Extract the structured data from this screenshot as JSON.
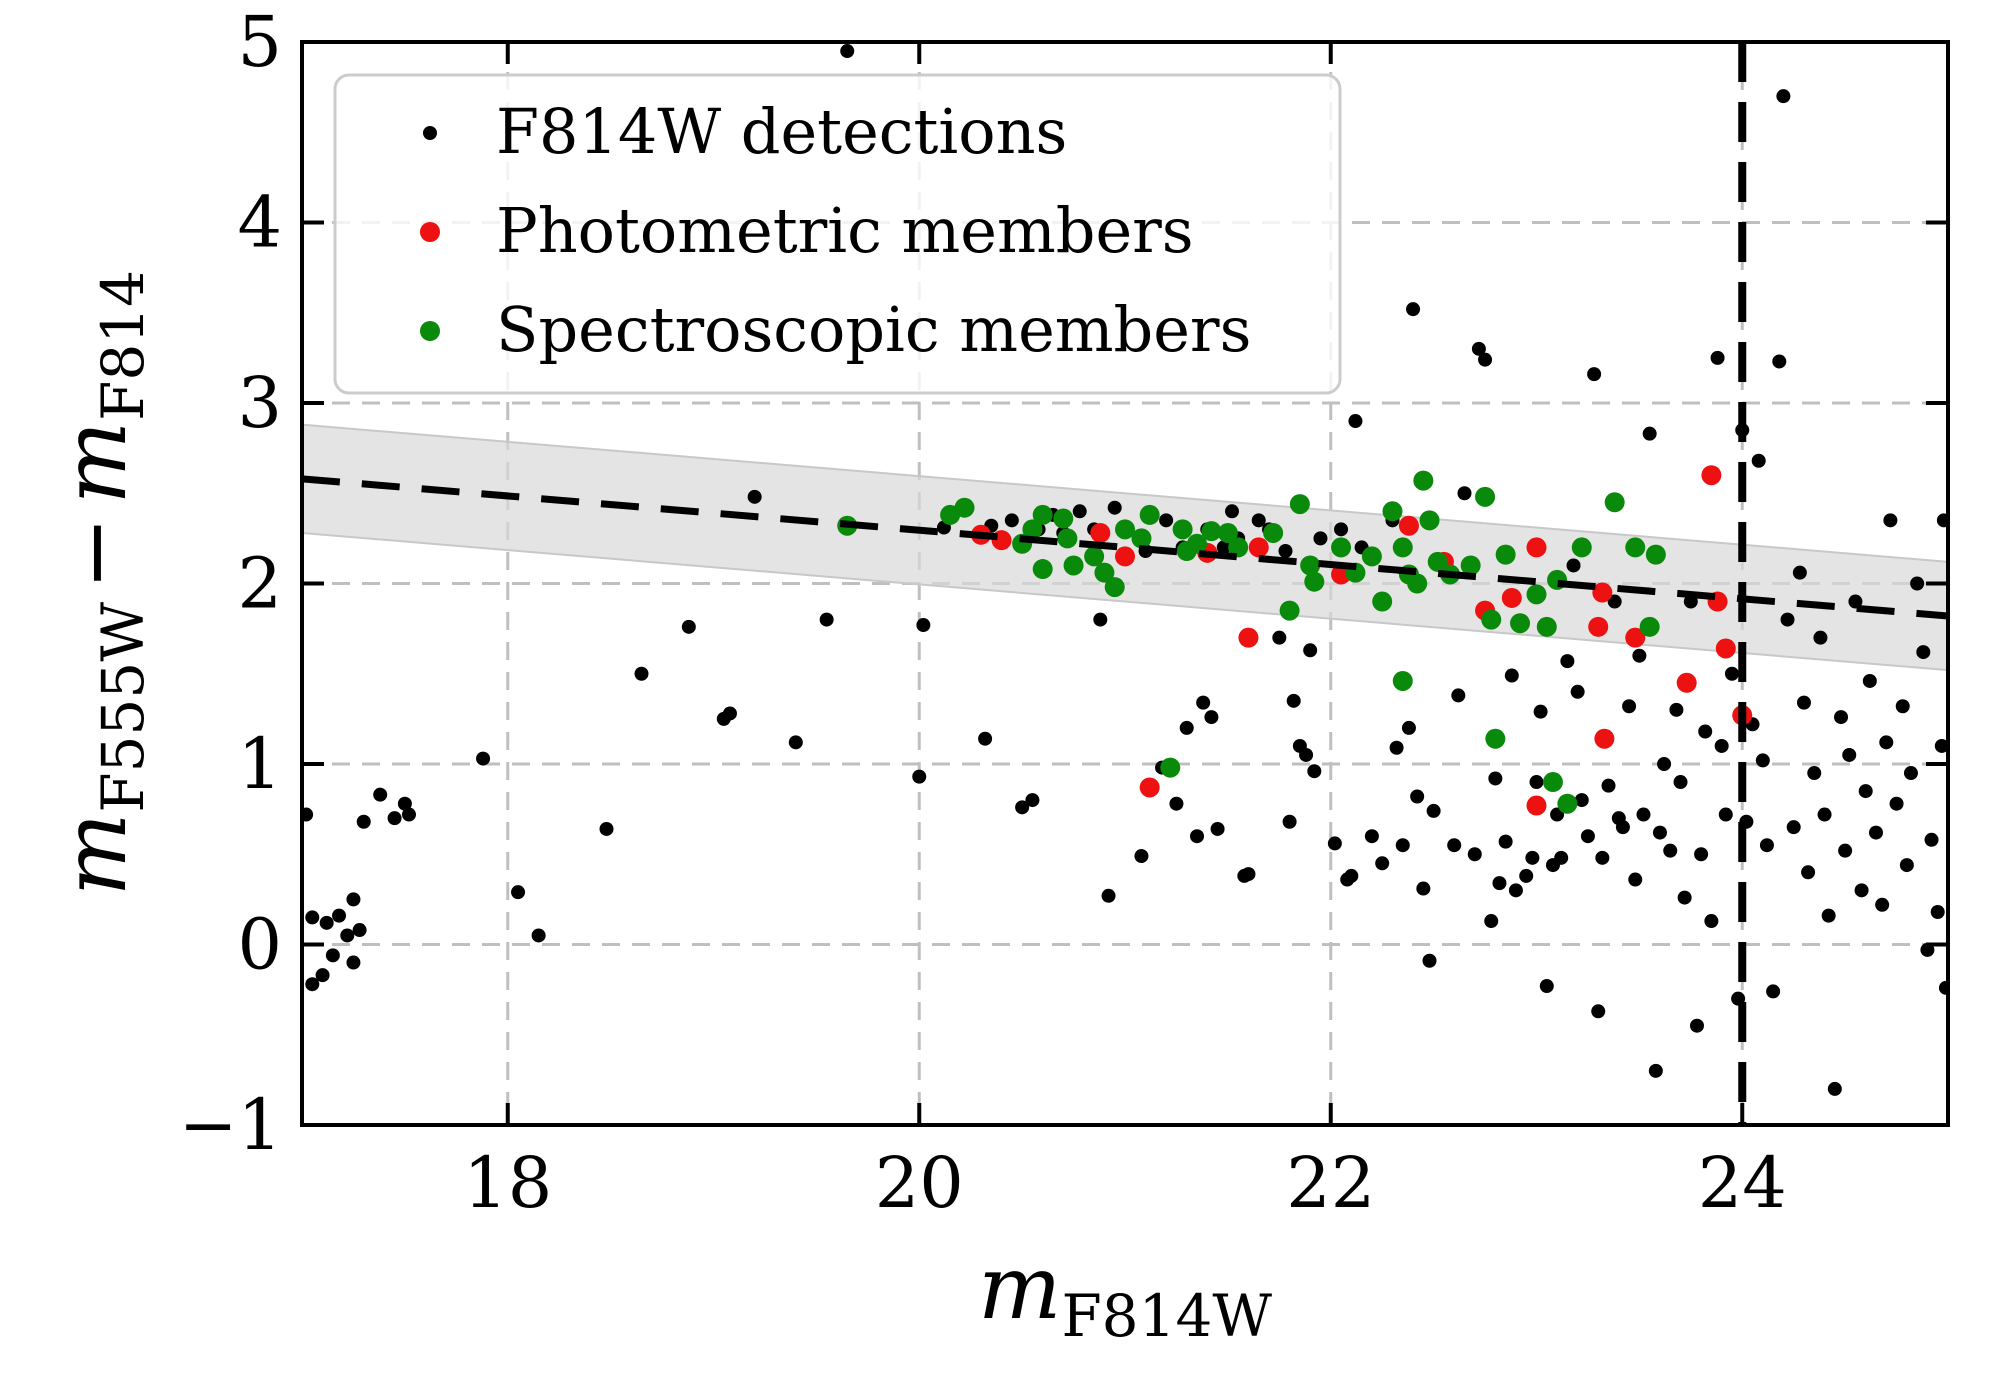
{
  "chart_data": {
    "type": "scatter",
    "title": "",
    "xlabel": {
      "base": "m",
      "sub": "F814W"
    },
    "ylabel": {
      "base": "m",
      "sub1": "F555W",
      "minus": "−",
      "sub2": "F814"
    },
    "xlim": [
      17,
      25
    ],
    "ylim": [
      -1,
      5
    ],
    "xticks": [
      18,
      20,
      22,
      24
    ],
    "xtick_labels": [
      "18",
      "20",
      "22",
      "24"
    ],
    "yticks": [
      -1,
      0,
      1,
      2,
      3,
      4,
      5
    ],
    "ytick_labels": [
      "−1",
      "0",
      "1",
      "2",
      "3",
      "4",
      "5"
    ],
    "grid": true,
    "legend_position": "top-left",
    "magnitude_limit": 24,
    "sequence_fit": {
      "x": [
        17,
        25
      ],
      "y": [
        2.58,
        1.82
      ],
      "band_halfwidth": 0.3,
      "style": "dashed"
    },
    "series": [
      {
        "name": "F814W detections",
        "color": "#000000",
        "points": [
          [
            17.02,
            0.72
          ],
          [
            17.05,
            -0.22
          ],
          [
            17.05,
            0.15
          ],
          [
            17.1,
            -0.17
          ],
          [
            17.12,
            0.12
          ],
          [
            17.15,
            -0.06
          ],
          [
            17.18,
            0.16
          ],
          [
            17.22,
            0.05
          ],
          [
            17.25,
            0.25
          ],
          [
            17.25,
            -0.1
          ],
          [
            17.28,
            0.08
          ],
          [
            17.3,
            0.68
          ],
          [
            17.38,
            0.83
          ],
          [
            17.45,
            0.7
          ],
          [
            17.5,
            0.78
          ],
          [
            17.52,
            0.72
          ],
          [
            17.88,
            1.03
          ],
          [
            18.05,
            0.29
          ],
          [
            18.15,
            0.05
          ],
          [
            18.48,
            0.64
          ],
          [
            18.65,
            1.5
          ],
          [
            18.88,
            1.76
          ],
          [
            19.05,
            1.25
          ],
          [
            19.08,
            1.28
          ],
          [
            19.2,
            2.48
          ],
          [
            19.4,
            1.12
          ],
          [
            19.55,
            1.8
          ],
          [
            19.65,
            4.95
          ],
          [
            20.0,
            0.93
          ],
          [
            20.02,
            1.77
          ],
          [
            20.12,
            2.31
          ],
          [
            20.32,
            1.14
          ],
          [
            20.35,
            2.32
          ],
          [
            20.45,
            2.35
          ],
          [
            20.5,
            0.76
          ],
          [
            20.55,
            0.8
          ],
          [
            20.58,
            2.3
          ],
          [
            20.65,
            2.38
          ],
          [
            20.7,
            2.28
          ],
          [
            20.78,
            2.4
          ],
          [
            20.85,
            2.3
          ],
          [
            20.88,
            1.8
          ],
          [
            20.92,
            0.27
          ],
          [
            20.95,
            2.42
          ],
          [
            21.0,
            2.3
          ],
          [
            21.08,
            0.49
          ],
          [
            21.1,
            2.18
          ],
          [
            21.18,
            0.98
          ],
          [
            21.2,
            2.35
          ],
          [
            21.25,
            0.78
          ],
          [
            21.28,
            2.2
          ],
          [
            21.3,
            1.2
          ],
          [
            21.35,
            0.6
          ],
          [
            21.38,
            1.34
          ],
          [
            21.4,
            2.3
          ],
          [
            21.42,
            1.26
          ],
          [
            21.45,
            0.64
          ],
          [
            21.48,
            2.2
          ],
          [
            21.52,
            2.4
          ],
          [
            21.55,
            2.25
          ],
          [
            21.58,
            0.38
          ],
          [
            21.6,
            0.39
          ],
          [
            21.65,
            2.35
          ],
          [
            21.7,
            2.3
          ],
          [
            21.75,
            1.7
          ],
          [
            21.78,
            2.18
          ],
          [
            21.8,
            0.68
          ],
          [
            21.82,
            1.35
          ],
          [
            21.85,
            1.1
          ],
          [
            21.88,
            1.05
          ],
          [
            21.9,
            1.63
          ],
          [
            21.92,
            0.96
          ],
          [
            21.95,
            2.25
          ],
          [
            22.02,
            0.56
          ],
          [
            22.05,
            2.3
          ],
          [
            22.08,
            0.36
          ],
          [
            22.1,
            0.38
          ],
          [
            22.12,
            2.9
          ],
          [
            22.15,
            2.2
          ],
          [
            22.2,
            0.6
          ],
          [
            22.25,
            0.45
          ],
          [
            22.3,
            2.35
          ],
          [
            22.32,
            1.09
          ],
          [
            22.35,
            0.55
          ],
          [
            22.38,
            1.2
          ],
          [
            22.4,
            3.52
          ],
          [
            22.42,
            0.82
          ],
          [
            22.45,
            0.31
          ],
          [
            22.48,
            -0.09
          ],
          [
            22.5,
            0.74
          ],
          [
            22.55,
            2.1
          ],
          [
            22.6,
            0.55
          ],
          [
            22.62,
            1.38
          ],
          [
            22.65,
            2.5
          ],
          [
            22.7,
            0.5
          ],
          [
            22.72,
            3.3
          ],
          [
            22.75,
            3.24
          ],
          [
            22.78,
            0.13
          ],
          [
            22.8,
            0.92
          ],
          [
            22.82,
            0.34
          ],
          [
            22.85,
            0.57
          ],
          [
            22.88,
            1.49
          ],
          [
            22.9,
            0.3
          ],
          [
            22.95,
            0.38
          ],
          [
            22.98,
            0.48
          ],
          [
            23.0,
            0.9
          ],
          [
            23.02,
            1.29
          ],
          [
            23.05,
            -0.23
          ],
          [
            23.08,
            0.44
          ],
          [
            23.1,
            0.72
          ],
          [
            23.12,
            0.48
          ],
          [
            23.15,
            1.57
          ],
          [
            23.18,
            2.1
          ],
          [
            23.2,
            1.4
          ],
          [
            23.22,
            0.8
          ],
          [
            23.25,
            0.6
          ],
          [
            23.28,
            3.16
          ],
          [
            23.3,
            -0.37
          ],
          [
            23.32,
            0.48
          ],
          [
            23.35,
            0.88
          ],
          [
            23.38,
            1.9
          ],
          [
            23.4,
            0.7
          ],
          [
            23.42,
            0.65
          ],
          [
            23.45,
            1.32
          ],
          [
            23.48,
            0.36
          ],
          [
            23.5,
            1.6
          ],
          [
            23.52,
            0.72
          ],
          [
            23.55,
            2.83
          ],
          [
            23.58,
            -0.7
          ],
          [
            23.6,
            0.62
          ],
          [
            23.62,
            1.0
          ],
          [
            23.65,
            0.52
          ],
          [
            23.68,
            1.3
          ],
          [
            23.7,
            0.9
          ],
          [
            23.72,
            0.26
          ],
          [
            23.75,
            1.9
          ],
          [
            23.78,
            -0.45
          ],
          [
            23.8,
            0.5
          ],
          [
            23.82,
            1.18
          ],
          [
            23.85,
            0.13
          ],
          [
            23.88,
            3.25
          ],
          [
            23.9,
            1.1
          ],
          [
            23.92,
            0.72
          ],
          [
            23.95,
            1.5
          ],
          [
            23.98,
            -0.3
          ],
          [
            24.0,
            2.85
          ],
          [
            24.02,
            0.68
          ],
          [
            24.05,
            1.22
          ],
          [
            24.08,
            2.68
          ],
          [
            24.1,
            1.02
          ],
          [
            24.12,
            0.55
          ],
          [
            24.15,
            -0.26
          ],
          [
            24.18,
            3.23
          ],
          [
            24.2,
            4.7
          ],
          [
            24.22,
            1.8
          ],
          [
            24.25,
            0.65
          ],
          [
            24.28,
            2.06
          ],
          [
            24.3,
            1.34
          ],
          [
            24.32,
            0.4
          ],
          [
            24.35,
            0.95
          ],
          [
            24.38,
            1.7
          ],
          [
            24.4,
            0.72
          ],
          [
            24.42,
            0.16
          ],
          [
            24.45,
            -0.8
          ],
          [
            24.48,
            1.26
          ],
          [
            24.5,
            0.52
          ],
          [
            24.52,
            1.05
          ],
          [
            24.55,
            1.9
          ],
          [
            24.58,
            0.3
          ],
          [
            24.6,
            0.85
          ],
          [
            24.62,
            1.46
          ],
          [
            24.65,
            0.62
          ],
          [
            24.68,
            0.22
          ],
          [
            24.7,
            1.12
          ],
          [
            24.72,
            2.35
          ],
          [
            24.75,
            0.78
          ],
          [
            24.78,
            1.32
          ],
          [
            24.8,
            0.44
          ],
          [
            24.82,
            0.95
          ],
          [
            24.85,
            2.0
          ],
          [
            24.88,
            1.62
          ],
          [
            24.9,
            -0.03
          ],
          [
            24.92,
            0.58
          ],
          [
            24.95,
            0.18
          ],
          [
            24.97,
            1.1
          ],
          [
            24.98,
            2.35
          ],
          [
            24.99,
            -0.24
          ]
        ]
      },
      {
        "name": "Photometric members",
        "color": "#ee1111",
        "points": [
          [
            20.3,
            2.27
          ],
          [
            20.4,
            2.24
          ],
          [
            20.88,
            2.28
          ],
          [
            21.0,
            2.15
          ],
          [
            21.12,
            0.87
          ],
          [
            21.4,
            2.17
          ],
          [
            21.6,
            1.7
          ],
          [
            21.65,
            2.2
          ],
          [
            22.05,
            2.05
          ],
          [
            22.38,
            2.32
          ],
          [
            22.55,
            2.12
          ],
          [
            22.75,
            1.85
          ],
          [
            22.88,
            1.92
          ],
          [
            23.0,
            2.2
          ],
          [
            23.0,
            0.77
          ],
          [
            23.3,
            1.76
          ],
          [
            23.32,
            1.95
          ],
          [
            23.33,
            1.14
          ],
          [
            23.48,
            1.7
          ],
          [
            23.73,
            1.45
          ],
          [
            23.85,
            2.6
          ],
          [
            23.88,
            1.9
          ],
          [
            23.92,
            1.64
          ],
          [
            24.0,
            1.27
          ]
        ]
      },
      {
        "name": "Spectroscopic members",
        "color": "#0a8a0a",
        "points": [
          [
            19.65,
            2.32
          ],
          [
            20.15,
            2.38
          ],
          [
            20.22,
            2.42
          ],
          [
            20.5,
            2.22
          ],
          [
            20.55,
            2.3
          ],
          [
            20.6,
            2.38
          ],
          [
            20.6,
            2.08
          ],
          [
            20.7,
            2.36
          ],
          [
            20.72,
            2.25
          ],
          [
            20.75,
            2.1
          ],
          [
            20.85,
            2.15
          ],
          [
            20.9,
            2.06
          ],
          [
            20.95,
            1.98
          ],
          [
            21.0,
            2.3
          ],
          [
            21.08,
            2.25
          ],
          [
            21.12,
            2.38
          ],
          [
            21.22,
            0.98
          ],
          [
            21.28,
            2.3
          ],
          [
            21.3,
            2.18
          ],
          [
            21.35,
            2.22
          ],
          [
            21.42,
            2.29
          ],
          [
            21.5,
            2.28
          ],
          [
            21.55,
            2.2
          ],
          [
            21.72,
            2.28
          ],
          [
            21.8,
            1.85
          ],
          [
            21.85,
            2.44
          ],
          [
            21.9,
            2.1
          ],
          [
            21.92,
            2.01
          ],
          [
            22.05,
            2.2
          ],
          [
            22.12,
            2.06
          ],
          [
            22.2,
            2.15
          ],
          [
            22.25,
            1.9
          ],
          [
            22.3,
            2.4
          ],
          [
            22.35,
            1.46
          ],
          [
            22.35,
            2.2
          ],
          [
            22.38,
            2.05
          ],
          [
            22.42,
            2.0
          ],
          [
            22.45,
            2.57
          ],
          [
            22.48,
            2.35
          ],
          [
            22.52,
            2.12
          ],
          [
            22.58,
            2.05
          ],
          [
            22.68,
            2.1
          ],
          [
            22.75,
            2.48
          ],
          [
            22.78,
            1.8
          ],
          [
            22.8,
            1.14
          ],
          [
            22.85,
            2.16
          ],
          [
            22.92,
            1.78
          ],
          [
            23.0,
            1.94
          ],
          [
            23.05,
            1.76
          ],
          [
            23.08,
            0.9
          ],
          [
            23.1,
            2.02
          ],
          [
            23.15,
            0.78
          ],
          [
            23.22,
            2.2
          ],
          [
            23.38,
            2.45
          ],
          [
            23.48,
            2.2
          ],
          [
            23.55,
            1.76
          ],
          [
            23.58,
            2.16
          ]
        ]
      }
    ]
  }
}
